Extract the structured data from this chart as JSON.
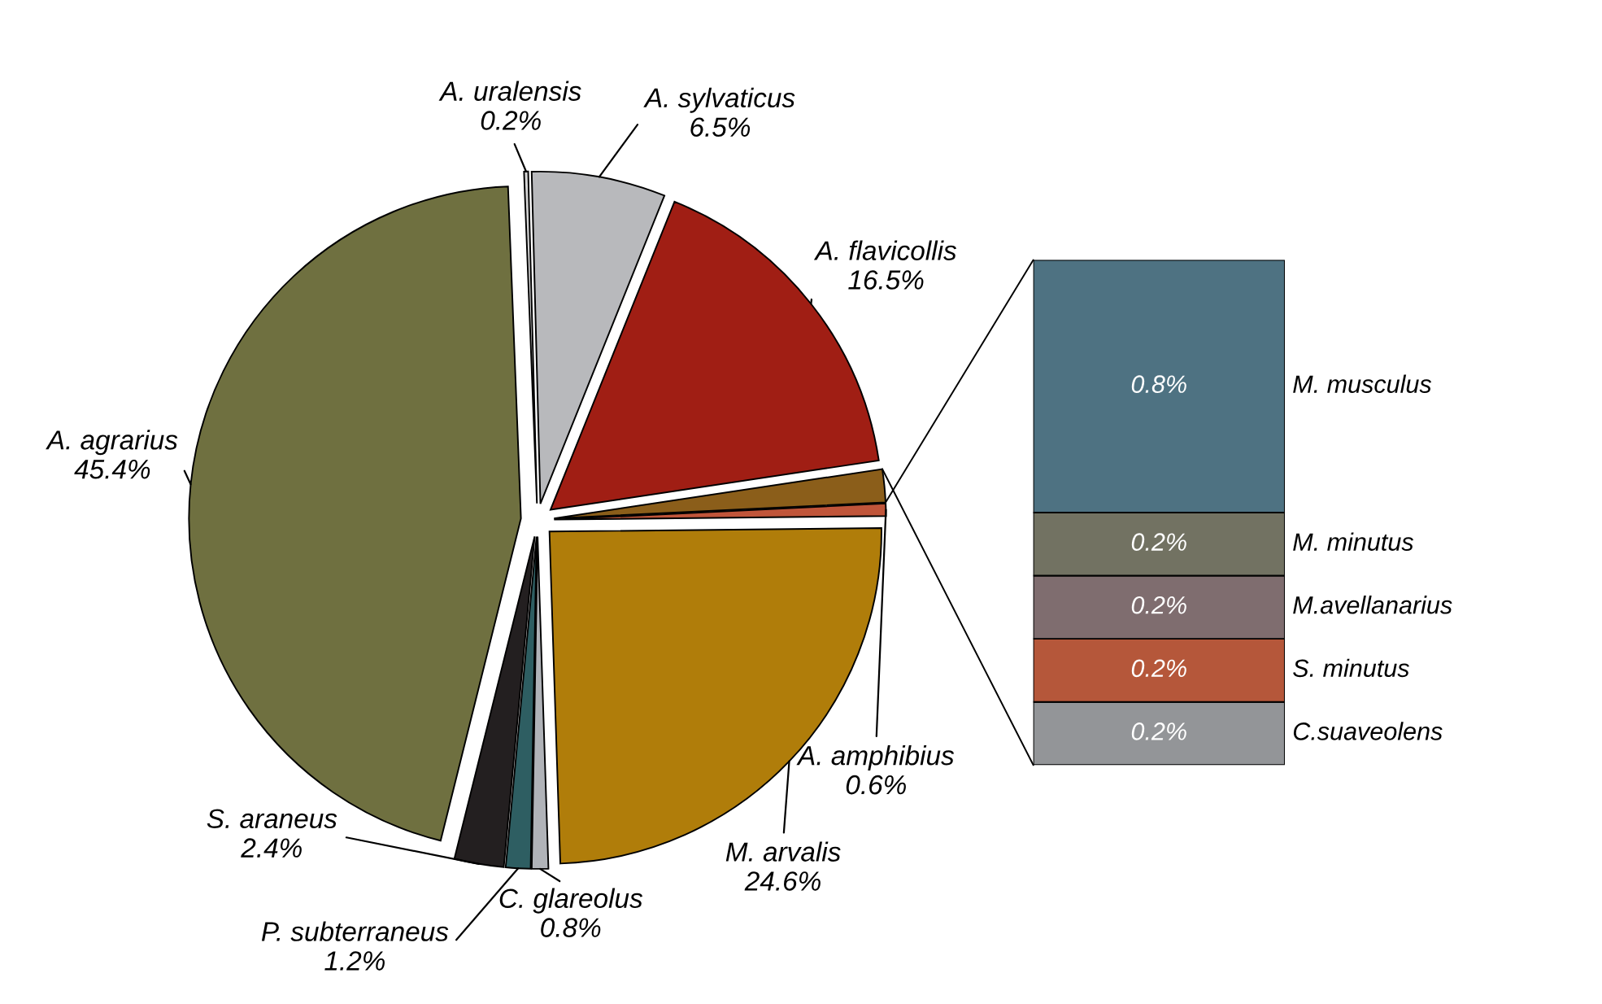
{
  "chart_data": [
    {
      "type": "pie",
      "categories": [
        "A. agrarius",
        "A. uralensis",
        "A. sylvaticus",
        "A. flavicollis",
        null,
        "A. amphibius",
        "M. arvalis",
        "C. glareolus",
        "P. subterraneus",
        "S. araneus"
      ],
      "values": [
        45.4,
        0.2,
        6.5,
        16.5,
        1.6,
        0.6,
        24.6,
        0.8,
        1.2,
        2.4
      ],
      "colors": [
        "#6f7040",
        "#d6d6d6",
        "#b8b9bc",
        "#a01e14",
        "#8b5e1a",
        "#c0553a",
        "#b07d0a",
        "#b0b3b8",
        "#2e5e62",
        "#231f20"
      ],
      "value_labels": [
        "45.4%",
        "0.2%",
        "6.5%",
        "16.5%",
        null,
        "0.6%",
        "24.6%",
        "0.8%",
        "1.2%",
        "2.4%"
      ]
    },
    {
      "type": "bar",
      "stacked": true,
      "categories": [
        null
      ],
      "series": [
        {
          "name": "C.suaveolens",
          "color": "#939598",
          "values": [
            0.2
          ],
          "value_labels": [
            "0.2%"
          ]
        },
        {
          "name": "S. minutus",
          "color": "#b5573a",
          "values": [
            0.2
          ],
          "value_labels": [
            "0.2%"
          ]
        },
        {
          "name": "M.avellanarius",
          "color": "#7f6d6f",
          "values": [
            0.2
          ],
          "value_labels": [
            "0.2%"
          ]
        },
        {
          "name": "M. minutus",
          "color": "#727262",
          "values": [
            0.2
          ],
          "value_labels": [
            "0.2%"
          ]
        },
        {
          "name": "M. musculus",
          "color": "#4e7282",
          "values": [
            0.8
          ],
          "value_labels": [
            "0.8%"
          ]
        }
      ]
    }
  ]
}
